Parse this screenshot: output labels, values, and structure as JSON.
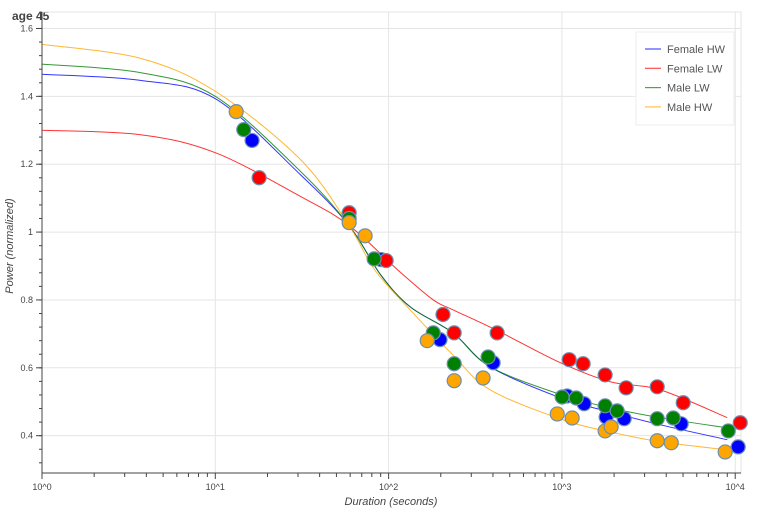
{
  "chart_data": {
    "type": "scatter",
    "title": "age 45",
    "xlabel": "Duration (seconds)",
    "ylabel": "Power (normalized)",
    "x_scale": "log",
    "xlim": [
      1,
      10800
    ],
    "ylim": [
      0.29,
      1.625
    ],
    "grid": true,
    "legend_position": "top-right",
    "x_ticks": [
      1,
      10,
      100,
      1000,
      10000
    ],
    "x_tick_labels": [
      "10^0",
      "10^1",
      "10^2",
      "10^3",
      "10^4"
    ],
    "y_ticks": [
      0.4,
      0.6,
      0.8,
      1.0,
      1.2,
      1.4,
      1.6
    ],
    "y_tick_labels": [
      "0.4",
      "0.6",
      "0.8",
      "1",
      "1.2",
      "1.4",
      "1.6"
    ],
    "series": [
      {
        "name": "Female HW",
        "color": "#0000ff",
        "curve": [
          [
            1,
            1.465
          ],
          [
            3.7,
            1.447
          ],
          [
            10,
            1.393
          ],
          [
            31,
            1.169
          ],
          [
            59,
            1.02
          ],
          [
            90,
            0.874
          ],
          [
            133,
            0.78
          ],
          [
            235,
            0.703
          ],
          [
            385,
            0.603
          ],
          [
            1000,
            0.51
          ],
          [
            1900,
            0.47
          ],
          [
            3700,
            0.432
          ],
          [
            9000,
            0.388
          ]
        ],
        "points": [
          [
            16.3,
            1.27
          ],
          [
            90.5,
            0.919
          ],
          [
            198,
            0.683
          ],
          [
            401,
            0.615
          ],
          [
            1072,
            0.517
          ],
          [
            1344,
            0.494
          ],
          [
            1800,
            0.455
          ],
          [
            2287,
            0.45
          ],
          [
            4877,
            0.435
          ],
          [
            10400,
            0.367
          ]
        ]
      },
      {
        "name": "Female LW",
        "color": "#ff0000",
        "curve": [
          [
            1,
            1.3
          ],
          [
            3.7,
            1.287
          ],
          [
            10,
            1.234
          ],
          [
            31,
            1.105
          ],
          [
            59,
            1.02
          ],
          [
            116,
            0.883
          ],
          [
            181,
            0.8
          ],
          [
            235,
            0.771
          ],
          [
            423,
            0.71
          ],
          [
            980,
            0.615
          ],
          [
            1900,
            0.559
          ],
          [
            3700,
            0.535
          ],
          [
            9000,
            0.453
          ]
        ],
        "points": [
          [
            17.9,
            1.16
          ],
          [
            59.2,
            1.057
          ],
          [
            96.8,
            0.916
          ],
          [
            206,
            0.757
          ],
          [
            239,
            0.703
          ],
          [
            423,
            0.703
          ],
          [
            1101,
            0.624
          ],
          [
            1326,
            0.612
          ],
          [
            1776,
            0.579
          ],
          [
            2348,
            0.541
          ],
          [
            3548,
            0.544
          ],
          [
            5012,
            0.497
          ],
          [
            10690,
            0.438
          ]
        ]
      },
      {
        "name": "Male LW",
        "color": "#008000",
        "curve": [
          [
            1,
            1.495
          ],
          [
            3.7,
            1.47
          ],
          [
            10,
            1.4
          ],
          [
            31,
            1.179
          ],
          [
            59,
            1.02
          ],
          [
            90,
            0.874
          ],
          [
            133,
            0.78
          ],
          [
            235,
            0.703
          ],
          [
            385,
            0.603
          ],
          [
            1000,
            0.52
          ],
          [
            1900,
            0.482
          ],
          [
            3700,
            0.453
          ],
          [
            9000,
            0.423
          ]
        ],
        "points": [
          [
            14.6,
            1.302
          ],
          [
            59.2,
            1.04
          ],
          [
            82.5,
            0.921
          ],
          [
            181,
            0.703
          ],
          [
            239,
            0.612
          ],
          [
            375,
            0.632
          ],
          [
            1003,
            0.514
          ],
          [
            1209,
            0.511
          ],
          [
            1776,
            0.488
          ],
          [
            2083,
            0.473
          ],
          [
            3548,
            0.45
          ],
          [
            4389,
            0.452
          ],
          [
            9120,
            0.414
          ]
        ]
      },
      {
        "name": "Male HW",
        "color": "#ffa500",
        "curve": [
          [
            1,
            1.553
          ],
          [
            3.7,
            1.512
          ],
          [
            10,
            1.415
          ],
          [
            31,
            1.214
          ],
          [
            59,
            1.02
          ],
          [
            83,
            0.889
          ],
          [
            133,
            0.771
          ],
          [
            235,
            0.638
          ],
          [
            385,
            0.535
          ],
          [
            1010,
            0.447
          ],
          [
            1900,
            0.411
          ],
          [
            3700,
            0.382
          ],
          [
            9000,
            0.358
          ]
        ],
        "points": [
          [
            13.2,
            1.355
          ],
          [
            59.2,
            1.028
          ],
          [
            73.2,
            0.989
          ],
          [
            167,
            0.68
          ],
          [
            239,
            0.562
          ],
          [
            351,
            0.57
          ],
          [
            940,
            0.464
          ],
          [
            1146,
            0.452
          ],
          [
            1776,
            0.414
          ],
          [
            1923,
            0.426
          ],
          [
            3548,
            0.385
          ],
          [
            4275,
            0.379
          ],
          [
            8750,
            0.352
          ]
        ]
      }
    ]
  }
}
